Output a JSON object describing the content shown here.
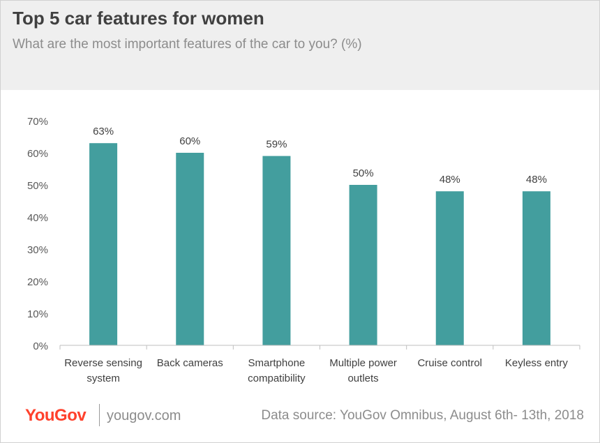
{
  "header": {
    "title": "Top 5 car features for women",
    "subtitle": "What are the most important features of the car to you? (%)"
  },
  "footer": {
    "logo": "YouGov",
    "url": "yougov.com",
    "source": "Data source: YouGov Omnibus, August 6th- 13th, 2018"
  },
  "colors": {
    "bar": "#439e9e",
    "brand": "#ff412c",
    "header_bg": "#efefef"
  },
  "chart_data": {
    "type": "bar",
    "categories": [
      [
        "Reverse sensing",
        "system"
      ],
      [
        "Back cameras"
      ],
      [
        "Smartphone",
        "compatibility"
      ],
      [
        "Multiple power",
        "outlets"
      ],
      [
        "Cruise control"
      ],
      [
        "Keyless entry"
      ]
    ],
    "values": [
      63,
      60,
      59,
      50,
      48,
      48
    ],
    "data_labels": [
      "63%",
      "60%",
      "59%",
      "50%",
      "48%",
      "48%"
    ],
    "y_ticks": [
      "0%",
      "10%",
      "20%",
      "30%",
      "40%",
      "50%",
      "60%",
      "70%"
    ],
    "ylim": [
      0,
      70
    ],
    "grid": false,
    "legend": "none"
  }
}
